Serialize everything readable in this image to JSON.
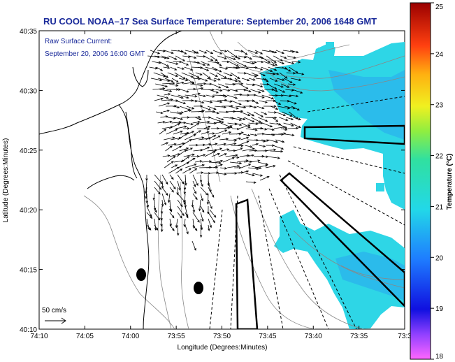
{
  "title": "RU COOL  NOAA–17  Sea Surface Temperature:  September 20, 2006 1648 GMT",
  "current_note": {
    "line1": "Raw Surface Current:",
    "line2": "September 20, 2006 16:00 GMT"
  },
  "scale_label": "50 cm/s",
  "x_axis": {
    "label": "Longitude (Degrees:Minutes)",
    "ticks": [
      "74:10",
      "74:05",
      "74:00",
      "73:55",
      "73:50",
      "73:45",
      "73:40",
      "73:35",
      "73:3"
    ]
  },
  "y_axis": {
    "label": "Latitude (Degrees:Minutes)",
    "ticks": [
      "40:10",
      "40:15",
      "40:20",
      "40:25",
      "40:30",
      "40:35"
    ]
  },
  "colorbar": {
    "label": "Temperature (°C)",
    "ticks": [
      "18",
      "19",
      "20",
      "21",
      "22",
      "23",
      "24",
      "25"
    ],
    "range": [
      18,
      25
    ]
  },
  "colors": {
    "title_text": "#1a2a9a",
    "sst_fill": "#2ed6e6",
    "sst_dark": "#2aa8ee",
    "land_outline": "#000000",
    "bathymetry": "#888888",
    "arrows": "#000000"
  }
}
